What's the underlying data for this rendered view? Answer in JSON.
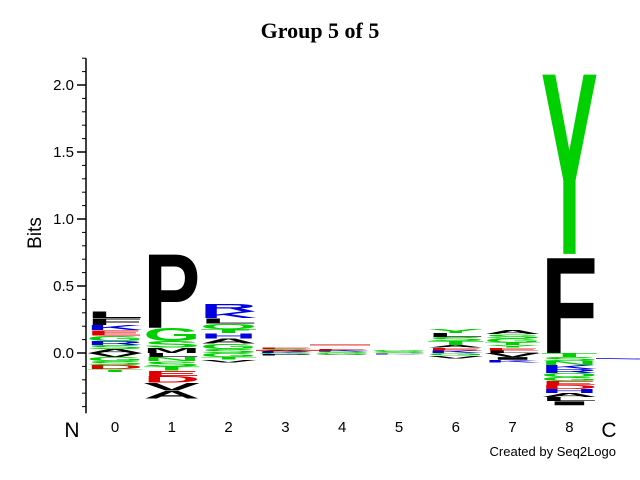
{
  "chart_data": {
    "type": "sequence-logo",
    "title": "Group 5 of 5",
    "ylabel": "Bits",
    "ylim": [
      -0.45,
      2.2
    ],
    "yticks": [
      0.0,
      0.5,
      1.0,
      1.5,
      2.0
    ],
    "ytick_labels": [
      "0.0",
      "0.5",
      "1.0",
      "1.5",
      "2.0"
    ],
    "positions": [
      "0",
      "1",
      "2",
      "3",
      "4",
      "5",
      "6",
      "7",
      "8"
    ],
    "terminal_left": "N",
    "terminal_right": "C",
    "credit": "Created by Seq2Logo",
    "colors": {
      "black": "#000000",
      "green": "#00d000",
      "blue": "#0000e0",
      "red": "#e00000"
    },
    "stacks": [
      {
        "position": "0",
        "above": [
          {
            "letter": "L",
            "bits": 0.05,
            "color": "black"
          },
          {
            "letter": "F",
            "bits": 0.05,
            "color": "black"
          },
          {
            "letter": "K",
            "bits": 0.04,
            "color": "blue"
          },
          {
            "letter": "E",
            "bits": 0.04,
            "color": "red"
          },
          {
            "letter": "G",
            "bits": 0.04,
            "color": "green"
          },
          {
            "letter": "R",
            "bits": 0.03,
            "color": "blue"
          },
          {
            "letter": "S",
            "bits": 0.03,
            "color": "green"
          },
          {
            "letter": "A",
            "bits": 0.03,
            "color": "black"
          }
        ],
        "below": [
          {
            "letter": "V",
            "bits": 0.03,
            "color": "black"
          },
          {
            "letter": "G",
            "bits": 0.03,
            "color": "green"
          },
          {
            "letter": "S",
            "bits": 0.03,
            "color": "green"
          },
          {
            "letter": "D",
            "bits": 0.03,
            "color": "red"
          },
          {
            "letter": "T",
            "bits": 0.02,
            "color": "green"
          }
        ]
      },
      {
        "position": "1",
        "above": [
          {
            "letter": "P",
            "bits": 0.57,
            "color": "black"
          },
          {
            "letter": "G",
            "bits": 0.1,
            "color": "green"
          },
          {
            "letter": "S",
            "bits": 0.05,
            "color": "green"
          },
          {
            "letter": "M",
            "bits": 0.04,
            "color": "black"
          }
        ],
        "below": [
          {
            "letter": "L",
            "bits": 0.03,
            "color": "black"
          },
          {
            "letter": "N",
            "bits": 0.03,
            "color": "green"
          },
          {
            "letter": "S",
            "bits": 0.04,
            "color": "green"
          },
          {
            "letter": "T",
            "bits": 0.03,
            "color": "green"
          },
          {
            "letter": "E",
            "bits": 0.04,
            "color": "red"
          },
          {
            "letter": "D",
            "bits": 0.05,
            "color": "red"
          },
          {
            "letter": "V",
            "bits": 0.06,
            "color": "black"
          },
          {
            "letter": "A",
            "bits": 0.06,
            "color": "black"
          }
        ]
      },
      {
        "position": "2",
        "above": [
          {
            "letter": "R",
            "bits": 0.06,
            "color": "blue"
          },
          {
            "letter": "K",
            "bits": 0.05,
            "color": "blue"
          },
          {
            "letter": "L",
            "bits": 0.04,
            "color": "black"
          },
          {
            "letter": "Q",
            "bits": 0.04,
            "color": "green"
          },
          {
            "letter": "T",
            "bits": 0.03,
            "color": "green"
          },
          {
            "letter": "H",
            "bits": 0.04,
            "color": "blue"
          },
          {
            "letter": "A",
            "bits": 0.04,
            "color": "black"
          },
          {
            "letter": "G",
            "bits": 0.04,
            "color": "green"
          },
          {
            "letter": "S",
            "bits": 0.03,
            "color": "green"
          }
        ],
        "below": [
          {
            "letter": "G",
            "bits": 0.03,
            "color": "green"
          },
          {
            "letter": "T",
            "bits": 0.02,
            "color": "green"
          },
          {
            "letter": "V",
            "bits": 0.02,
            "color": "black"
          }
        ]
      },
      {
        "position": "3",
        "above": [
          {
            "letter": "E",
            "bits": 0.01,
            "color": "red"
          },
          {
            "letter": "S",
            "bits": 0.01,
            "color": "green"
          },
          {
            "letter": "A",
            "bits": 0.01,
            "color": "black"
          },
          {
            "letter": "K",
            "bits": 0.01,
            "color": "blue"
          }
        ],
        "below": [
          {
            "letter": "G",
            "bits": 0.01,
            "color": "green"
          },
          {
            "letter": "P",
            "bits": 0.01,
            "color": "black"
          }
        ]
      },
      {
        "position": "4",
        "above": [
          {
            "letter": "E",
            "bits": 0.01,
            "color": "red"
          },
          {
            "letter": "K",
            "bits": 0.01,
            "color": "blue"
          },
          {
            "letter": "S",
            "bits": 0.01,
            "color": "green"
          }
        ],
        "below": [
          {
            "letter": "G",
            "bits": 0.01,
            "color": "green"
          },
          {
            "letter": "V",
            "bits": 0.005,
            "color": "black"
          }
        ]
      },
      {
        "position": "5",
        "above": [
          {
            "letter": "G",
            "bits": 0.01,
            "color": "green"
          },
          {
            "letter": "S",
            "bits": 0.01,
            "color": "green"
          }
        ],
        "below": [
          {
            "letter": "P",
            "bits": 0.005,
            "color": "black"
          },
          {
            "letter": "K",
            "bits": 0.005,
            "color": "blue"
          }
        ]
      },
      {
        "position": "6",
        "above": [
          {
            "letter": "Y",
            "bits": 0.03,
            "color": "green"
          },
          {
            "letter": "L",
            "bits": 0.03,
            "color": "black"
          },
          {
            "letter": "S",
            "bits": 0.03,
            "color": "green"
          },
          {
            "letter": "T",
            "bits": 0.03,
            "color": "green"
          },
          {
            "letter": "A",
            "bits": 0.02,
            "color": "black"
          },
          {
            "letter": "E",
            "bits": 0.02,
            "color": "red"
          },
          {
            "letter": "K",
            "bits": 0.02,
            "color": "blue"
          }
        ],
        "below": [
          {
            "letter": "G",
            "bits": 0.02,
            "color": "green"
          },
          {
            "letter": "V",
            "bits": 0.02,
            "color": "black"
          }
        ]
      },
      {
        "position": "7",
        "above": [
          {
            "letter": "A",
            "bits": 0.03,
            "color": "black"
          },
          {
            "letter": "S",
            "bits": 0.03,
            "color": "green"
          },
          {
            "letter": "G",
            "bits": 0.03,
            "color": "green"
          },
          {
            "letter": "T",
            "bits": 0.02,
            "color": "green"
          },
          {
            "letter": "Y",
            "bits": 0.02,
            "color": "green"
          },
          {
            "letter": "E",
            "bits": 0.02,
            "color": "red"
          },
          {
            "letter": "L",
            "bits": 0.02,
            "color": "black"
          }
        ],
        "below": [
          {
            "letter": "V",
            "bits": 0.03,
            "color": "black"
          },
          {
            "letter": "I",
            "bits": 0.02,
            "color": "black"
          },
          {
            "letter": "K",
            "bits": 0.02,
            "color": "blue"
          }
        ]
      },
      {
        "position": "8",
        "above": [
          {
            "letter": "Y",
            "bits": 1.4,
            "color": "green"
          },
          {
            "letter": "F",
            "bits": 0.74,
            "color": "black"
          }
        ],
        "below": [
          {
            "letter": "T",
            "bits": 0.03,
            "color": "green"
          },
          {
            "letter": "S",
            "bits": 0.03,
            "color": "green"
          },
          {
            "letter": "N",
            "bits": 0.03,
            "color": "green"
          },
          {
            "letter": "K",
            "bits": 0.03,
            "color": "blue"
          },
          {
            "letter": "R",
            "bits": 0.03,
            "color": "blue"
          },
          {
            "letter": "Q",
            "bits": 0.03,
            "color": "green"
          },
          {
            "letter": "G",
            "bits": 0.03,
            "color": "green"
          },
          {
            "letter": "E",
            "bits": 0.03,
            "color": "red"
          },
          {
            "letter": "D",
            "bits": 0.03,
            "color": "red"
          },
          {
            "letter": "H",
            "bits": 0.03,
            "color": "blue"
          },
          {
            "letter": "A",
            "bits": 0.03,
            "color": "black"
          },
          {
            "letter": "L",
            "bits": 0.03,
            "color": "black"
          },
          {
            "letter": "I",
            "bits": 0.03,
            "color": "black"
          }
        ]
      }
    ]
  }
}
